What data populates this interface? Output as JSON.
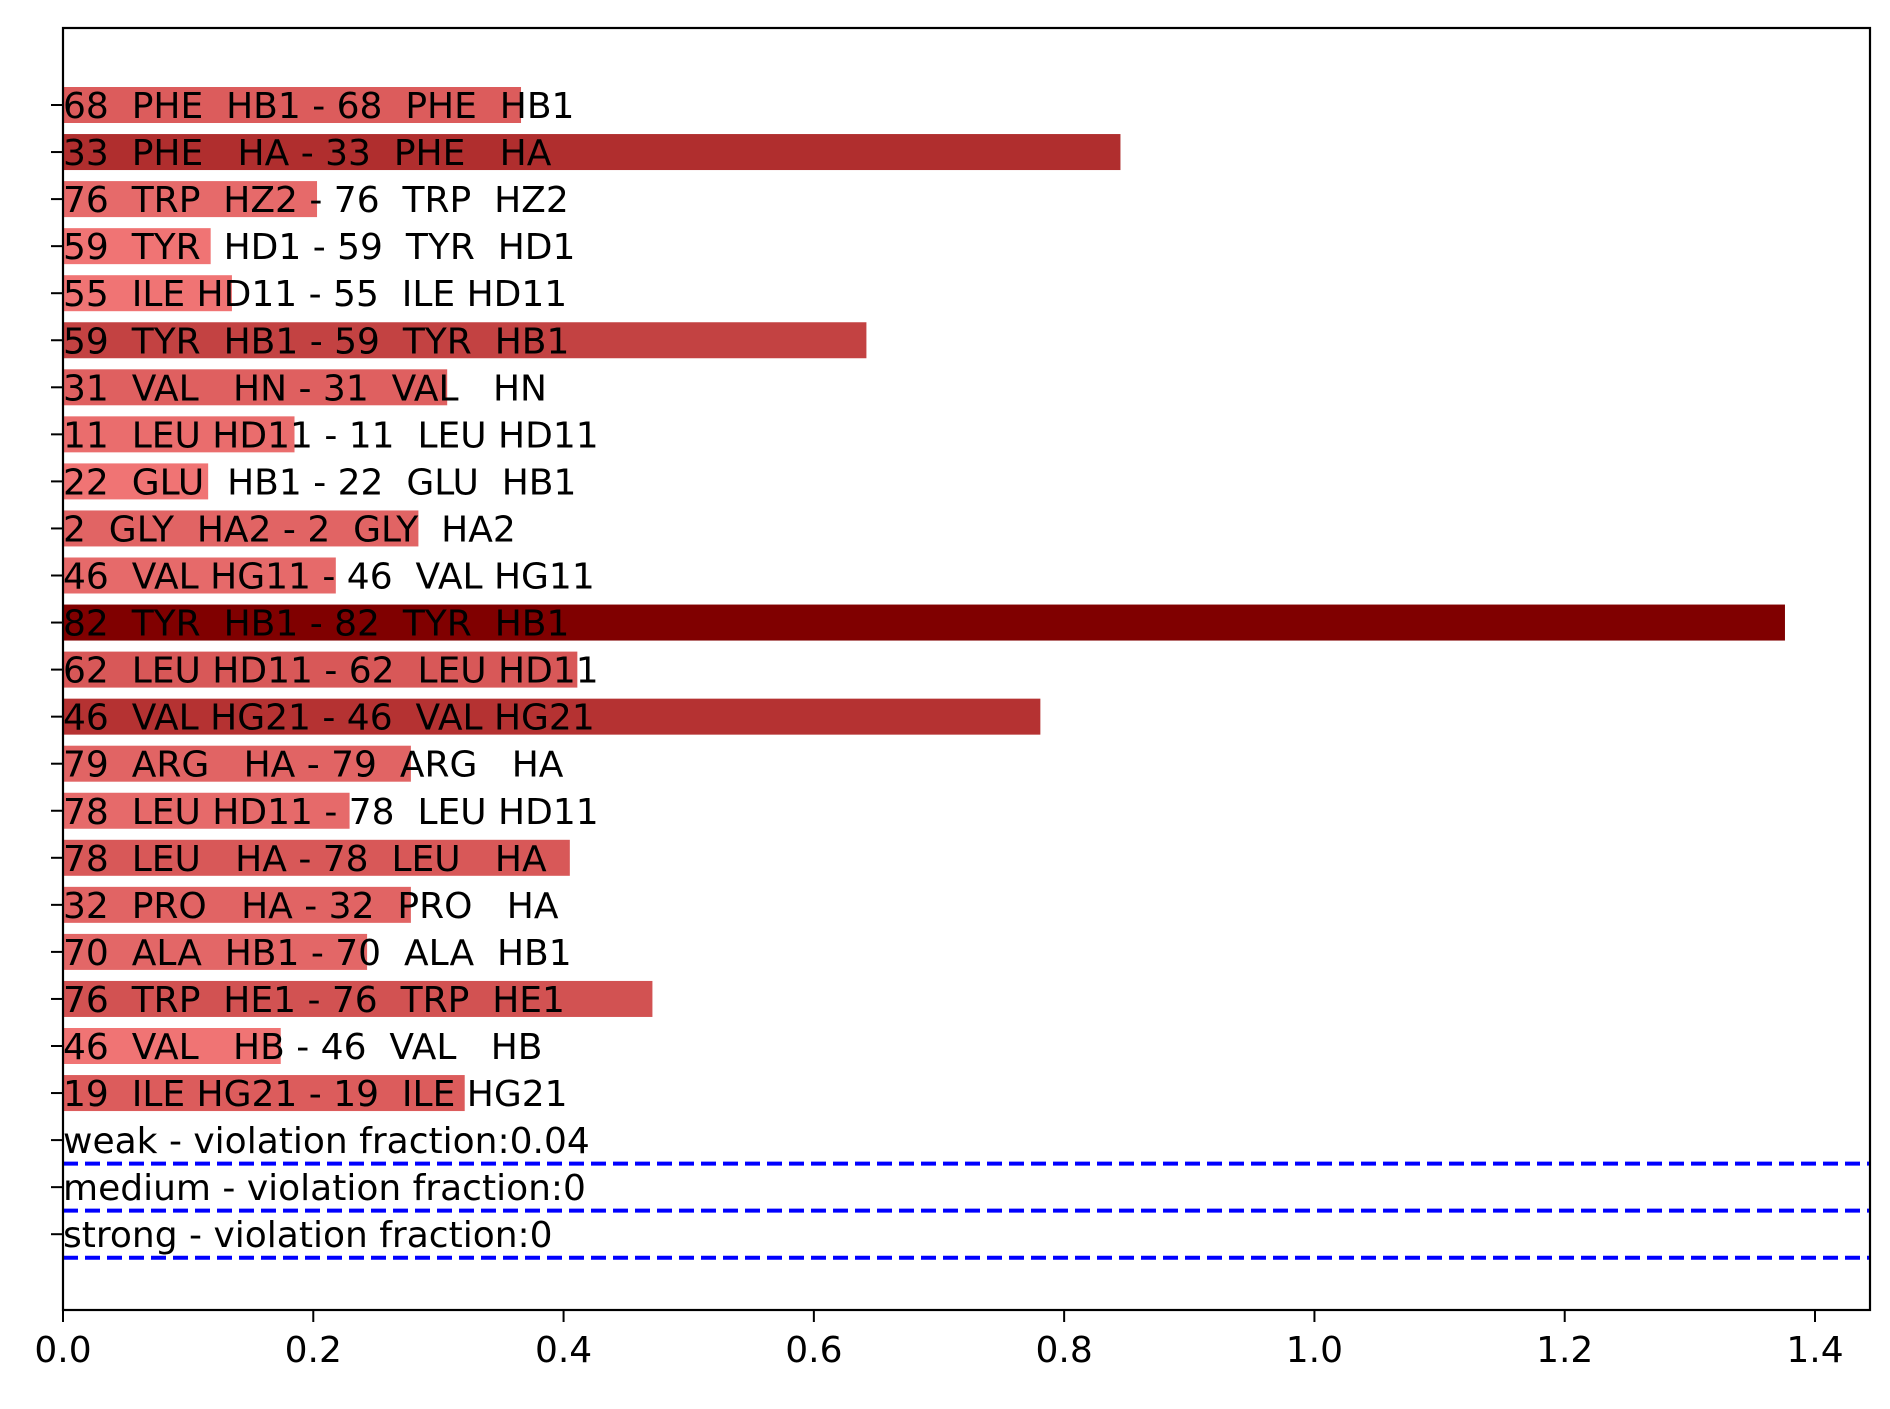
{
  "chart_data": {
    "type": "bar",
    "orientation": "horizontal",
    "categories": [
      "68  PHE  HB1 - 68  PHE  HB1",
      "33  PHE   HA - 33  PHE   HA",
      "76  TRP  HZ2 - 76  TRP  HZ2",
      "59  TYR  HD1 - 59  TYR  HD1",
      "55  ILE HD11 - 55  ILE HD11",
      "59  TYR  HB1 - 59  TYR  HB1",
      "31  VAL   HN - 31  VAL   HN",
      "11  LEU HD11 - 11  LEU HD11",
      "22  GLU  HB1 - 22  GLU  HB1",
      "2  GLY  HA2 - 2  GLY  HA2",
      "46  VAL HG11 - 46  VAL HG11",
      "82  TYR  HB1 - 82  TYR  HB1",
      "62  LEU HD11 - 62  LEU HD11",
      "46  VAL HG21 - 46  VAL HG21",
      "79  ARG   HA - 79  ARG   HA",
      "78  LEU HD11 - 78  LEU HD11",
      "78  LEU   HA - 78  LEU   HA",
      "32  PRO   HA - 32  PRO   HA",
      "70  ALA  HB1 - 70  ALA  HB1",
      "76  TRP  HE1 - 76  TRP  HE1",
      "46  VAL   HB - 46  VAL   HB",
      "19  ILE HG21 - 19  ILE HG21"
    ],
    "values": [
      0.366,
      0.845,
      0.203,
      0.118,
      0.135,
      0.642,
      0.307,
      0.185,
      0.116,
      0.284,
      0.218,
      1.376,
      0.411,
      0.781,
      0.278,
      0.229,
      0.405,
      0.278,
      0.243,
      0.471,
      0.174,
      0.321
    ],
    "colors": [
      "#dc5c5c",
      "#b02e2e",
      "#e66a6a",
      "#f07474",
      "#f07474",
      "#c34242",
      "#df6060",
      "#ea6d6d",
      "#f07474",
      "#e16464",
      "#e66a6a",
      "#800000",
      "#d85858",
      "#b53232",
      "#e16464",
      "#e66a6a",
      "#d85858",
      "#e16464",
      "#e36767",
      "#d25252",
      "#f07474",
      "#dc5c5c"
    ],
    "threshold_rows": [
      "weak - violation fraction:0.04",
      "medium - violation fraction:0",
      "strong - violation fraction:0"
    ],
    "threshold_lines": {
      "color": "#0000ff",
      "style": "dashed"
    },
    "x_ticks": [
      "0.0",
      "0.2",
      "0.4",
      "0.6",
      "0.8",
      "1.0",
      "1.2",
      "1.4"
    ],
    "xlim": [
      0,
      1.45
    ],
    "title": "",
    "xlabel": "",
    "ylabel": "",
    "grid": false,
    "legend": "none"
  }
}
